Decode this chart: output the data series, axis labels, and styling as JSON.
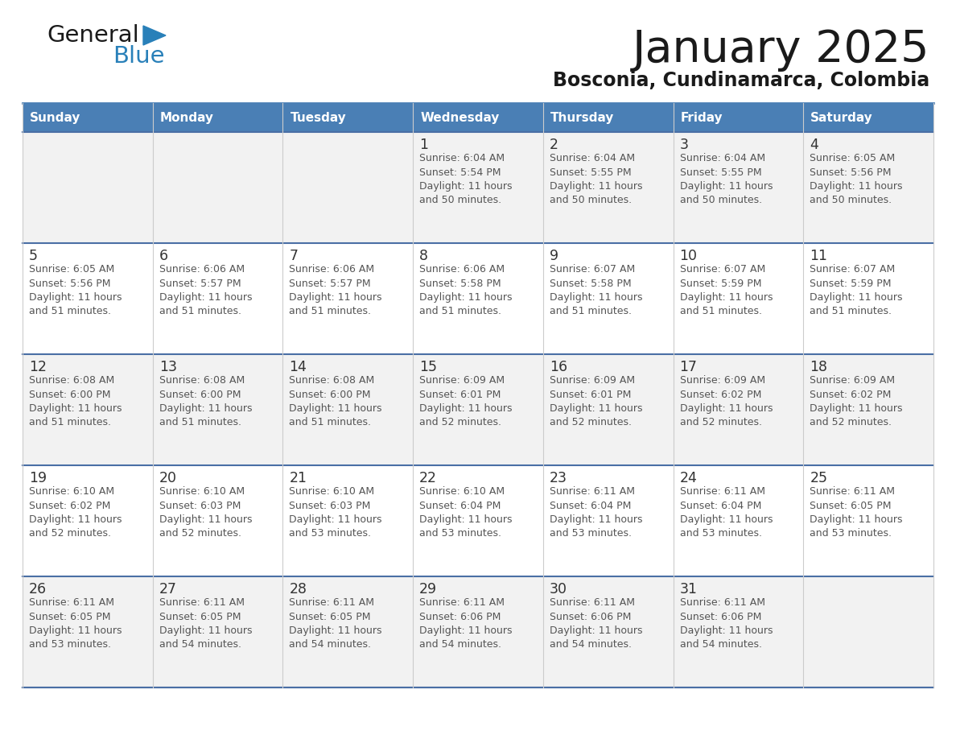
{
  "title": "January 2025",
  "subtitle": "Bosconia, Cundinamarca, Colombia",
  "header_color": "#4a7fb5",
  "header_text_color": "#ffffff",
  "cell_bg_white": "#ffffff",
  "cell_bg_gray": "#f2f2f2",
  "border_color": "#4a7fb5",
  "row_border_color": "#4a6fa5",
  "text_color": "#333333",
  "day_number_color": "#333333",
  "info_text_color": "#555555",
  "days_of_week": [
    "Sunday",
    "Monday",
    "Tuesday",
    "Wednesday",
    "Thursday",
    "Friday",
    "Saturday"
  ],
  "weeks": [
    [
      {
        "day": 0,
        "info": ""
      },
      {
        "day": 0,
        "info": ""
      },
      {
        "day": 0,
        "info": ""
      },
      {
        "day": 1,
        "info": "Sunrise: 6:04 AM\nSunset: 5:54 PM\nDaylight: 11 hours\nand 50 minutes."
      },
      {
        "day": 2,
        "info": "Sunrise: 6:04 AM\nSunset: 5:55 PM\nDaylight: 11 hours\nand 50 minutes."
      },
      {
        "day": 3,
        "info": "Sunrise: 6:04 AM\nSunset: 5:55 PM\nDaylight: 11 hours\nand 50 minutes."
      },
      {
        "day": 4,
        "info": "Sunrise: 6:05 AM\nSunset: 5:56 PM\nDaylight: 11 hours\nand 50 minutes."
      }
    ],
    [
      {
        "day": 5,
        "info": "Sunrise: 6:05 AM\nSunset: 5:56 PM\nDaylight: 11 hours\nand 51 minutes."
      },
      {
        "day": 6,
        "info": "Sunrise: 6:06 AM\nSunset: 5:57 PM\nDaylight: 11 hours\nand 51 minutes."
      },
      {
        "day": 7,
        "info": "Sunrise: 6:06 AM\nSunset: 5:57 PM\nDaylight: 11 hours\nand 51 minutes."
      },
      {
        "day": 8,
        "info": "Sunrise: 6:06 AM\nSunset: 5:58 PM\nDaylight: 11 hours\nand 51 minutes."
      },
      {
        "day": 9,
        "info": "Sunrise: 6:07 AM\nSunset: 5:58 PM\nDaylight: 11 hours\nand 51 minutes."
      },
      {
        "day": 10,
        "info": "Sunrise: 6:07 AM\nSunset: 5:59 PM\nDaylight: 11 hours\nand 51 minutes."
      },
      {
        "day": 11,
        "info": "Sunrise: 6:07 AM\nSunset: 5:59 PM\nDaylight: 11 hours\nand 51 minutes."
      }
    ],
    [
      {
        "day": 12,
        "info": "Sunrise: 6:08 AM\nSunset: 6:00 PM\nDaylight: 11 hours\nand 51 minutes."
      },
      {
        "day": 13,
        "info": "Sunrise: 6:08 AM\nSunset: 6:00 PM\nDaylight: 11 hours\nand 51 minutes."
      },
      {
        "day": 14,
        "info": "Sunrise: 6:08 AM\nSunset: 6:00 PM\nDaylight: 11 hours\nand 51 minutes."
      },
      {
        "day": 15,
        "info": "Sunrise: 6:09 AM\nSunset: 6:01 PM\nDaylight: 11 hours\nand 52 minutes."
      },
      {
        "day": 16,
        "info": "Sunrise: 6:09 AM\nSunset: 6:01 PM\nDaylight: 11 hours\nand 52 minutes."
      },
      {
        "day": 17,
        "info": "Sunrise: 6:09 AM\nSunset: 6:02 PM\nDaylight: 11 hours\nand 52 minutes."
      },
      {
        "day": 18,
        "info": "Sunrise: 6:09 AM\nSunset: 6:02 PM\nDaylight: 11 hours\nand 52 minutes."
      }
    ],
    [
      {
        "day": 19,
        "info": "Sunrise: 6:10 AM\nSunset: 6:02 PM\nDaylight: 11 hours\nand 52 minutes."
      },
      {
        "day": 20,
        "info": "Sunrise: 6:10 AM\nSunset: 6:03 PM\nDaylight: 11 hours\nand 52 minutes."
      },
      {
        "day": 21,
        "info": "Sunrise: 6:10 AM\nSunset: 6:03 PM\nDaylight: 11 hours\nand 53 minutes."
      },
      {
        "day": 22,
        "info": "Sunrise: 6:10 AM\nSunset: 6:04 PM\nDaylight: 11 hours\nand 53 minutes."
      },
      {
        "day": 23,
        "info": "Sunrise: 6:11 AM\nSunset: 6:04 PM\nDaylight: 11 hours\nand 53 minutes."
      },
      {
        "day": 24,
        "info": "Sunrise: 6:11 AM\nSunset: 6:04 PM\nDaylight: 11 hours\nand 53 minutes."
      },
      {
        "day": 25,
        "info": "Sunrise: 6:11 AM\nSunset: 6:05 PM\nDaylight: 11 hours\nand 53 minutes."
      }
    ],
    [
      {
        "day": 26,
        "info": "Sunrise: 6:11 AM\nSunset: 6:05 PM\nDaylight: 11 hours\nand 53 minutes."
      },
      {
        "day": 27,
        "info": "Sunrise: 6:11 AM\nSunset: 6:05 PM\nDaylight: 11 hours\nand 54 minutes."
      },
      {
        "day": 28,
        "info": "Sunrise: 6:11 AM\nSunset: 6:05 PM\nDaylight: 11 hours\nand 54 minutes."
      },
      {
        "day": 29,
        "info": "Sunrise: 6:11 AM\nSunset: 6:06 PM\nDaylight: 11 hours\nand 54 minutes."
      },
      {
        "day": 30,
        "info": "Sunrise: 6:11 AM\nSunset: 6:06 PM\nDaylight: 11 hours\nand 54 minutes."
      },
      {
        "day": 31,
        "info": "Sunrise: 6:11 AM\nSunset: 6:06 PM\nDaylight: 11 hours\nand 54 minutes."
      },
      {
        "day": 0,
        "info": ""
      }
    ]
  ],
  "logo_general_color": "#1a1a1a",
  "logo_blue_color": "#2980b9",
  "logo_triangle_color": "#2980b9",
  "fig_width": 11.88,
  "fig_height": 9.18,
  "dpi": 100
}
